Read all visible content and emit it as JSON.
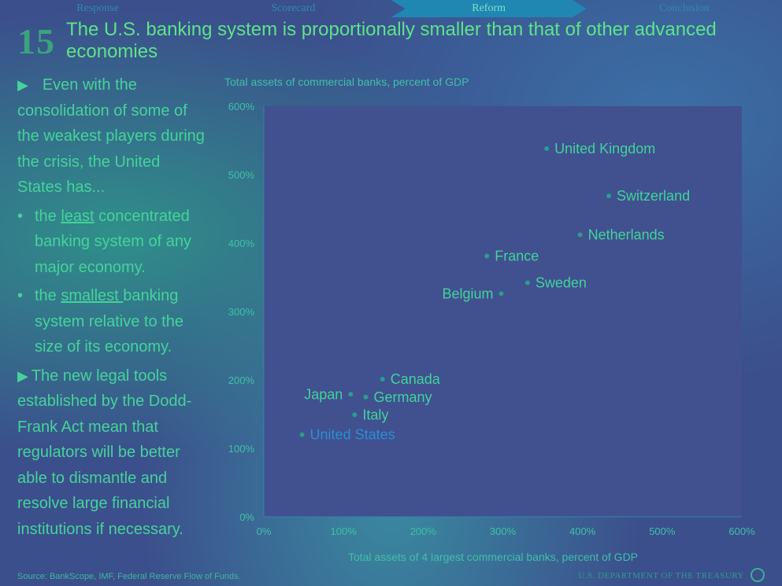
{
  "nav": {
    "tabs": [
      {
        "label": "Response"
      },
      {
        "label": "Scorecard"
      },
      {
        "label": "Reform"
      },
      {
        "label": "Conclusion"
      }
    ]
  },
  "header": {
    "number": "15",
    "title": "The U.S. banking system is proportionally smaller than that of other advanced economies"
  },
  "text": {
    "intro": "Even with the consolidation of some of the weakest players during the crisis, the United States has...",
    "b1_pre": "the ",
    "b1_u": "least",
    "b1_post": " concentrated banking system of any major economy.",
    "b2_pre": "the ",
    "b2_u": "smallest ",
    "b2_post": "banking system relative to the size of its economy.",
    "closing": "The new legal tools established by the Dodd-Frank Act mean that regulators will be better able to dismantle and resolve large financial institutions if necessary."
  },
  "footer": {
    "source": "Source: BankScope, IMF, Federal Reserve Flow of Funds.",
    "dept": "U.S. DEPARTMENT OF THE TREASURY"
  },
  "colors": {
    "point": "#2a9d8f",
    "label": "#3fd49a",
    "highlight": "#2a8fd0",
    "plot_bg": "#41508f"
  },
  "chart_data": {
    "type": "scatter",
    "title": "Total assets of commercial banks, percent of GDP",
    "xlabel": "Total assets of 4 largest commercial banks, percent of GDP",
    "ylabel": "",
    "xlim": [
      0,
      600
    ],
    "ylim": [
      0,
      600
    ],
    "xticks": [
      "0%",
      "100%",
      "200%",
      "300%",
      "400%",
      "500%",
      "600%"
    ],
    "yticks": [
      "0%",
      "100%",
      "200%",
      "300%",
      "400%",
      "500%",
      "600%"
    ],
    "grid": false,
    "points": [
      {
        "label": "United Kingdom",
        "x": 355,
        "y": 538,
        "label_side": "right"
      },
      {
        "label": "Switzerland",
        "x": 433,
        "y": 469,
        "label_side": "right"
      },
      {
        "label": "Netherlands",
        "x": 397,
        "y": 412,
        "label_side": "right"
      },
      {
        "label": "France",
        "x": 280,
        "y": 381,
        "label_side": "right"
      },
      {
        "label": "Sweden",
        "x": 331,
        "y": 342,
        "label_side": "right"
      },
      {
        "label": "Belgium",
        "x": 298,
        "y": 326,
        "label_side": "left"
      },
      {
        "label": "Canada",
        "x": 149,
        "y": 201,
        "label_side": "right"
      },
      {
        "label": "Japan",
        "x": 109,
        "y": 179,
        "label_side": "left"
      },
      {
        "label": "Germany",
        "x": 128,
        "y": 175,
        "label_side": "right"
      },
      {
        "label": "Italy",
        "x": 114,
        "y": 149,
        "label_side": "right"
      },
      {
        "label": "United States",
        "x": 48,
        "y": 120,
        "label_side": "right",
        "highlight": true
      }
    ]
  }
}
